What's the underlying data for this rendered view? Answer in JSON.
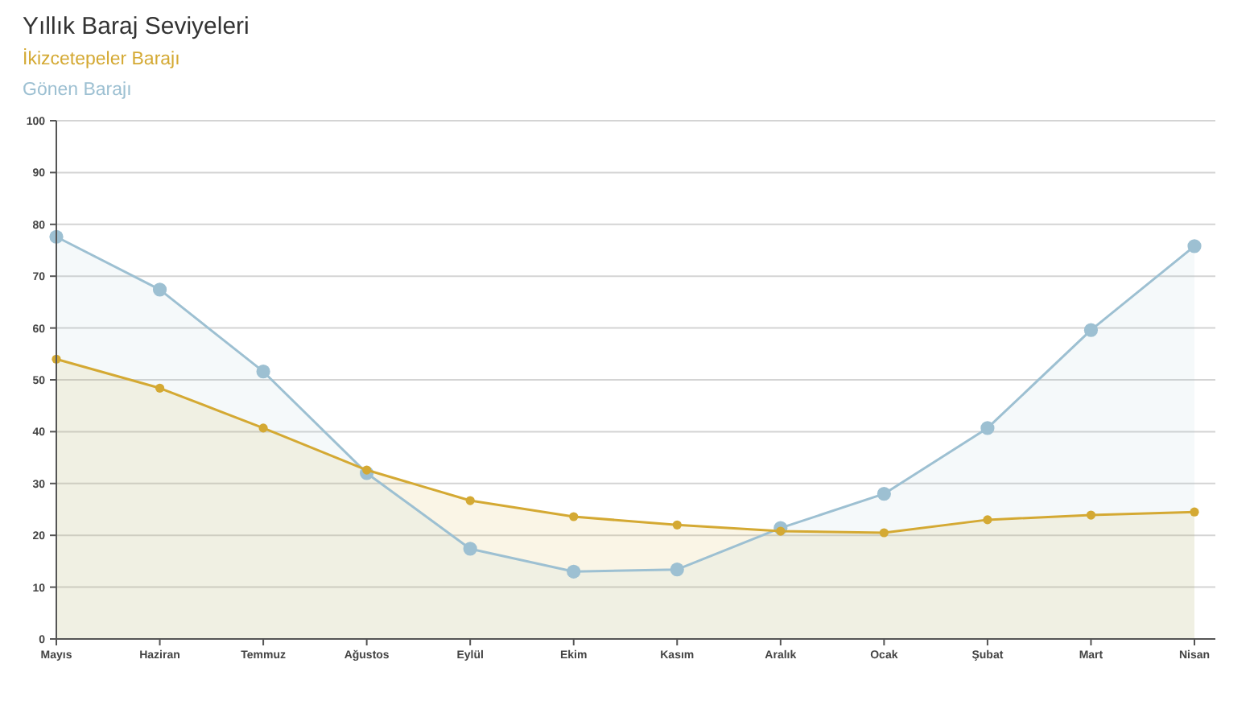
{
  "chart_data": {
    "type": "area",
    "title": "Yıllık Baraj Seviyeleri",
    "categories": [
      "Mayıs",
      "Haziran",
      "Temmuz",
      "Ağustos",
      "Eylül",
      "Ekim",
      "Kasım",
      "Aralık",
      "Ocak",
      "Şubat",
      "Mart",
      "Nisan"
    ],
    "series": [
      {
        "name": "İkizcetepeler Barajı",
        "color": "#d4a933",
        "values": [
          54.0,
          48.4,
          40.7,
          32.6,
          26.7,
          23.6,
          22.0,
          20.8,
          20.5,
          23.0,
          23.9,
          24.5
        ]
      },
      {
        "name": "Gönen Barajı",
        "color": "#9dc0d2",
        "values": [
          77.6,
          67.4,
          51.6,
          32.0,
          17.4,
          13.0,
          13.4,
          21.4,
          28.0,
          40.7,
          59.6,
          75.8
        ]
      }
    ],
    "ylim": [
      0,
      100
    ],
    "yticks": [
      0,
      10,
      20,
      30,
      40,
      50,
      60,
      70,
      80,
      90,
      100
    ],
    "grid": "y",
    "legend": "top left",
    "marker": "circle",
    "line_style": "solid"
  }
}
